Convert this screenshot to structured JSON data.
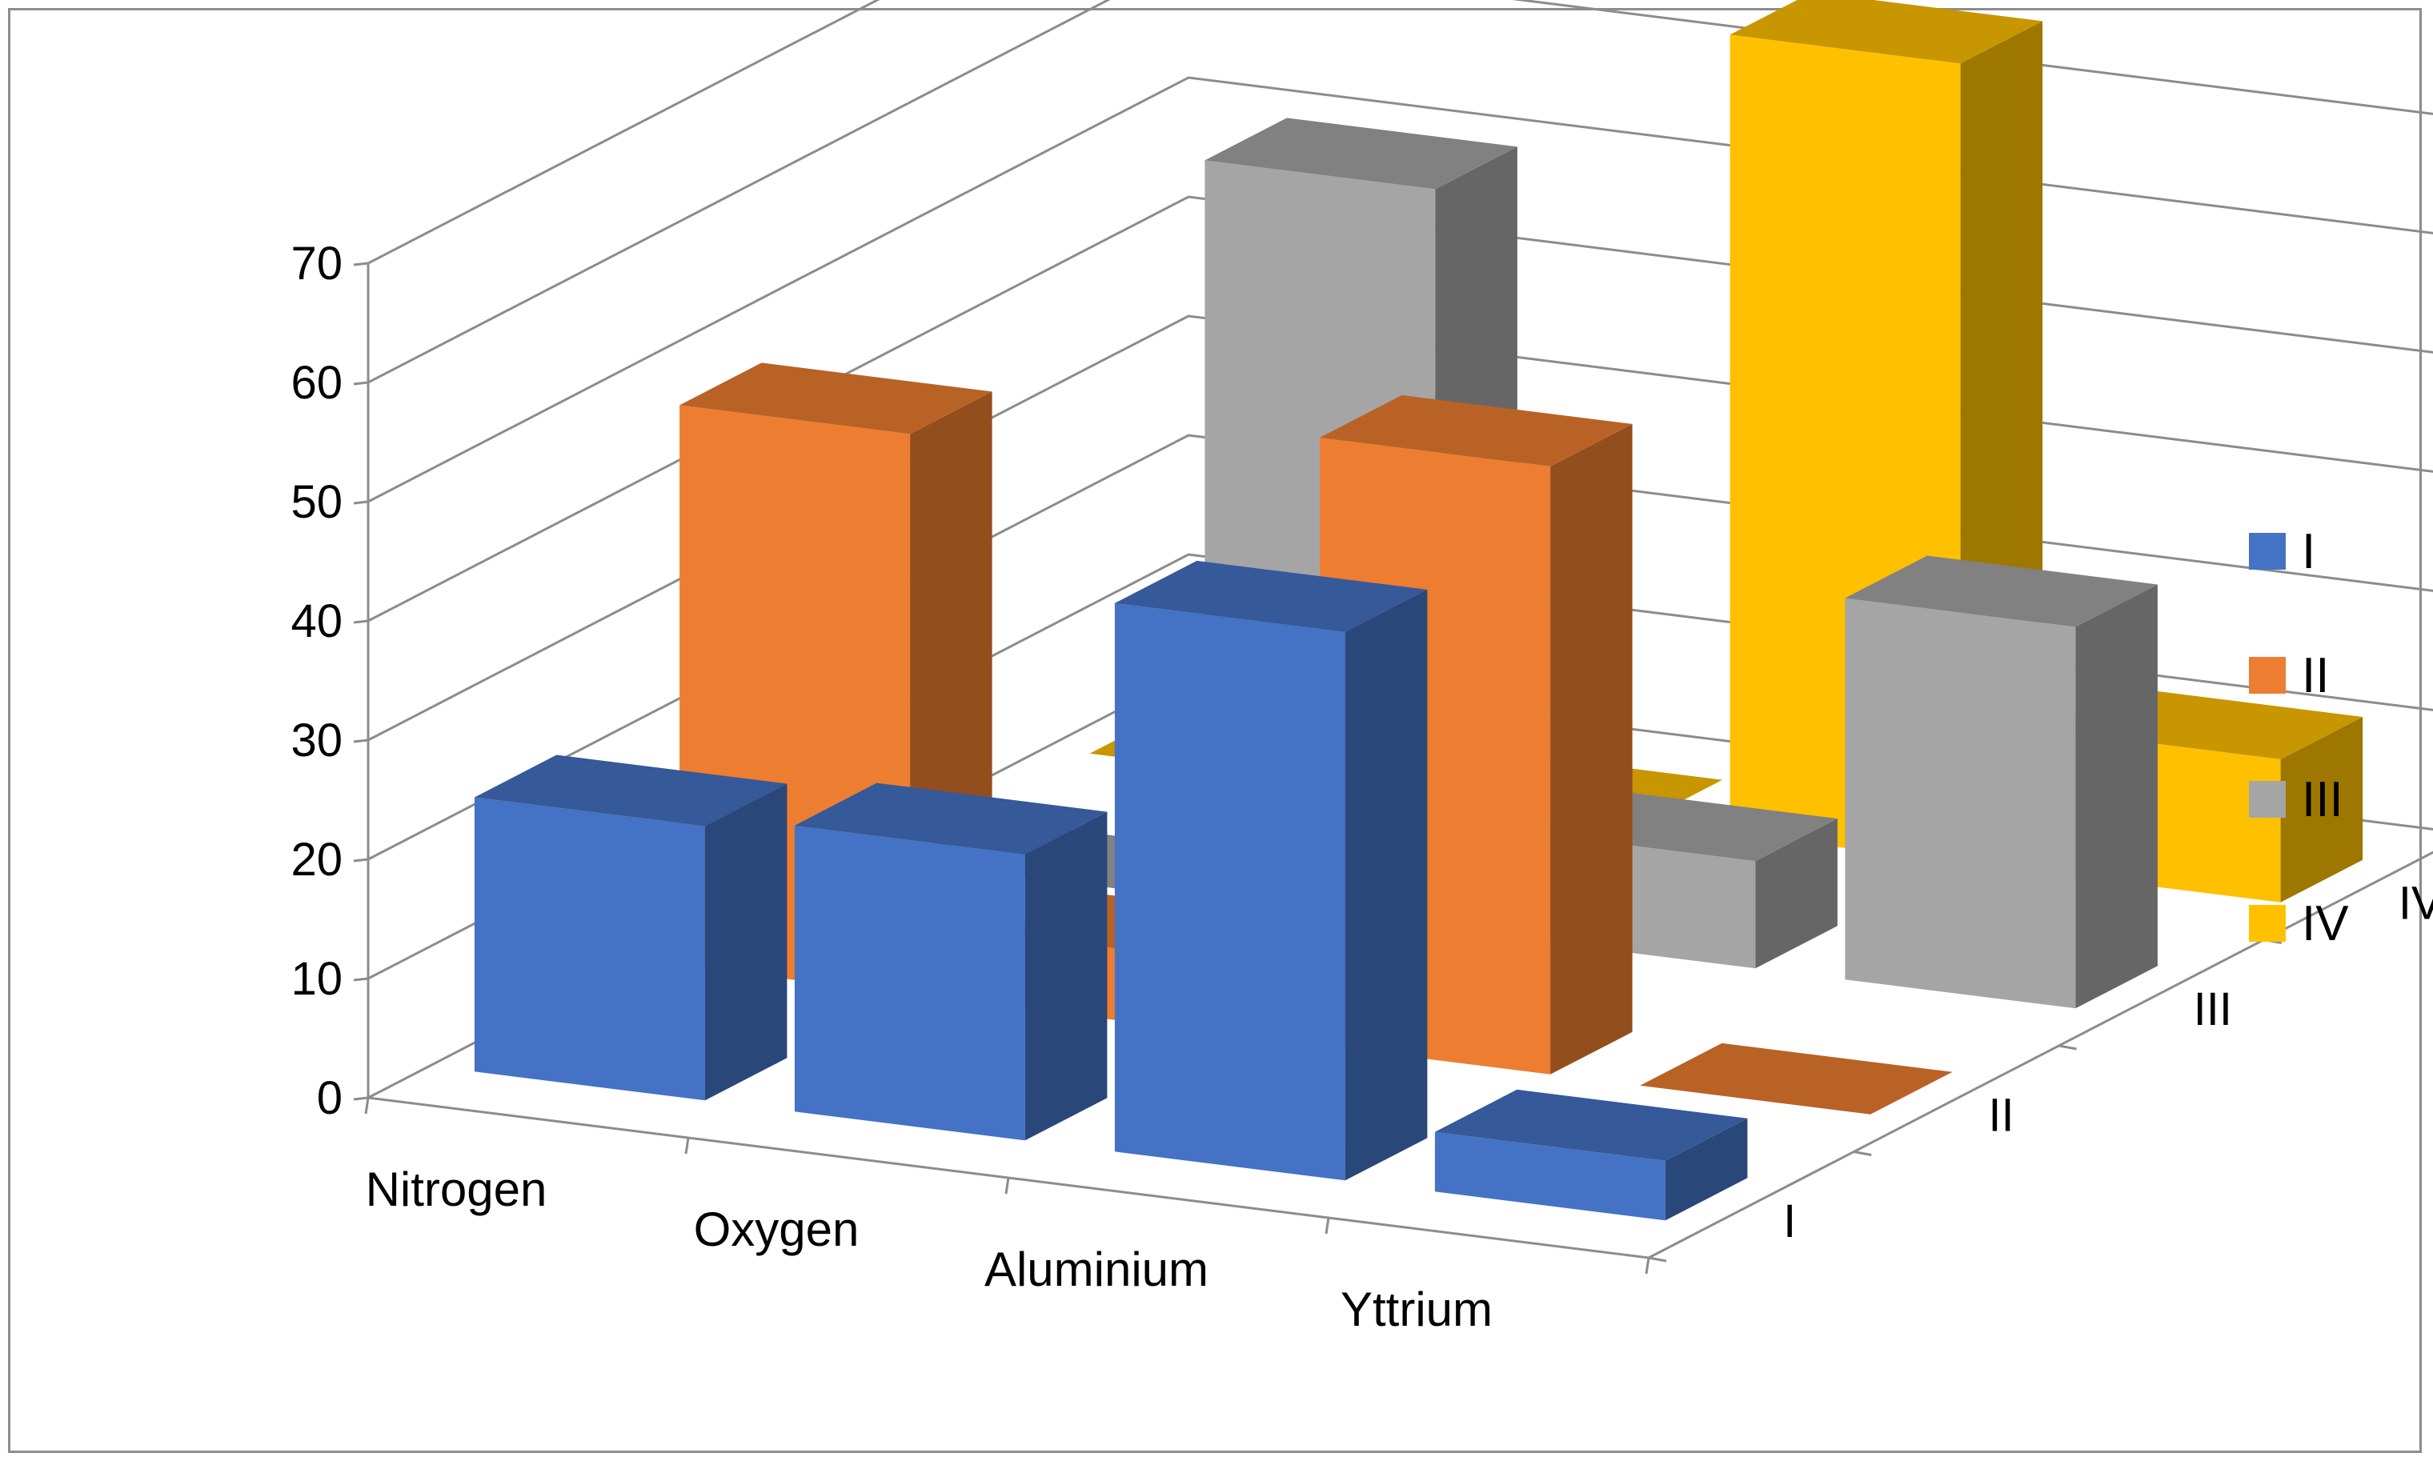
{
  "chart_data": {
    "type": "bar",
    "subtype": "3d-column",
    "title": "",
    "categories": [
      "Nitrogen",
      "Oxygen",
      "Aluminium",
      "Yttrium"
    ],
    "series": [
      {
        "name": "I",
        "color": "#4472C4",
        "values": [
          23,
          24,
          46,
          5
        ]
      },
      {
        "name": "II",
        "color": "#ED7D31",
        "values": [
          47,
          6,
          51,
          0
        ]
      },
      {
        "name": "III",
        "color": "#A5A5A5",
        "values": [
          0,
          62,
          9,
          32
        ]
      },
      {
        "name": "IV",
        "color": "#FFC000",
        "values": [
          0,
          0,
          67,
          12
        ]
      }
    ],
    "ylim": [
      0,
      70
    ],
    "yticks": [
      "0",
      "10",
      "20",
      "30",
      "40",
      "50",
      "60",
      "70"
    ],
    "depth_labels": [
      "I",
      "II",
      "III",
      "IV"
    ],
    "grid": true,
    "legend_position": "right"
  }
}
